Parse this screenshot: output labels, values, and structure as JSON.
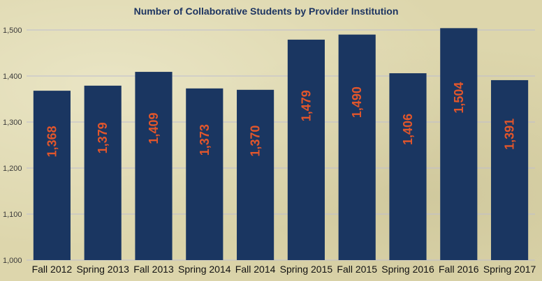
{
  "colors": {
    "bar": "#1a3661",
    "data_label": "#e2562b",
    "grid": "#bdbdd0",
    "title": "#1d3461"
  },
  "chart_data": {
    "type": "bar",
    "title": "Number of Collaborative Students by Provider Institution",
    "xlabel": "",
    "ylabel": "",
    "categories": [
      "Fall 2012",
      "Spring 2013",
      "Fall 2013",
      "Spring 2014",
      "Fall 2014",
      "Spring 2015",
      "Fall 2015",
      "Spring 2016",
      "Fall 2016",
      "Spring 2017"
    ],
    "values": [
      1368,
      1379,
      1409,
      1373,
      1370,
      1479,
      1490,
      1406,
      1504,
      1391
    ],
    "data_labels": [
      "1,368",
      "1,379",
      "1,409",
      "1,373",
      "1,370",
      "1,479",
      "1,490",
      "1,406",
      "1,504",
      "1,391"
    ],
    "ylim": [
      1000,
      1500
    ],
    "yticks": [
      1000,
      1100,
      1200,
      1300,
      1400,
      1500
    ],
    "ytick_labels": [
      "1,000",
      "1,100",
      "1,200",
      "1,300",
      "1,400",
      "1,500"
    ],
    "grid": true,
    "legend": "none"
  }
}
